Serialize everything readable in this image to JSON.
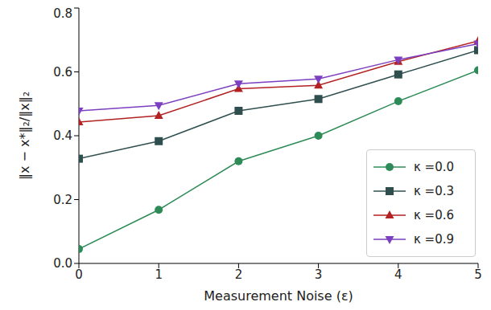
{
  "chart_data": {
    "type": "line",
    "x_label": "Measurement Noise (ε)",
    "y_label": "‖x − x*‖₂/‖x‖₂",
    "x": [
      0,
      1,
      2,
      3,
      4,
      5
    ],
    "xlim": [
      0,
      5
    ],
    "xticks": [
      0,
      1,
      2,
      3,
      4,
      5
    ],
    "ylim": [
      0,
      0.8
    ],
    "yticks": [
      {
        "value": 0,
        "label": "0.0"
      },
      {
        "value": 0.2,
        "label": "0.2"
      },
      {
        "value": 0.4,
        "label": "0.4"
      },
      {
        "value": 0.6,
        "label": "0.6"
      },
      {
        "value": 0.8,
        "label": "0.8"
      }
    ],
    "grid": false,
    "legend": "lower right",
    "series": [
      {
        "name": "κ =0.0",
        "color": "#2e8b57",
        "marker": "circle",
        "values": [
          0.045,
          0.168,
          0.32,
          0.4,
          0.508,
          0.605
        ]
      },
      {
        "name": "κ =0.3",
        "color": "#2f4f4f",
        "marker": "square",
        "values": [
          0.328,
          0.383,
          0.478,
          0.515,
          0.592,
          0.668
        ]
      },
      {
        "name": "κ =0.6",
        "color": "#b22222",
        "marker": "triangle-up",
        "values": [
          0.443,
          0.463,
          0.547,
          0.558,
          0.632,
          0.697
        ]
      },
      {
        "name": "κ =0.9",
        "color": "#7b3fbf",
        "marker": "triangle-down",
        "values": [
          0.478,
          0.495,
          0.563,
          0.578,
          0.638,
          0.688
        ]
      }
    ]
  }
}
